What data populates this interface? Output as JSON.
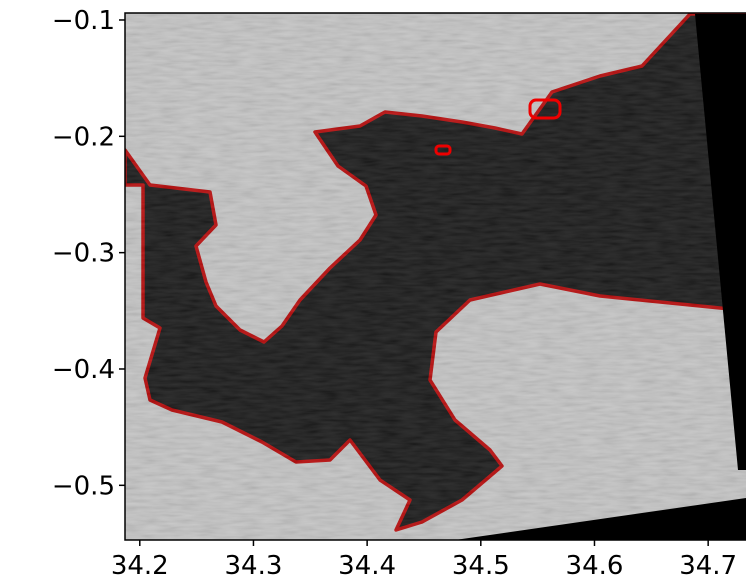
{
  "chart_data": {
    "type": "image",
    "xlim": [
      34.187,
      34.75
    ],
    "ylim": [
      -0.547,
      -0.094
    ],
    "xticks": [
      34.2,
      34.3,
      34.4,
      34.5,
      34.6,
      34.7
    ],
    "yticks": [
      {
        "value": -0.1,
        "label": "−0.1"
      },
      {
        "value": -0.2,
        "label": "−0.2"
      },
      {
        "value": -0.3,
        "label": "−0.3"
      },
      {
        "value": -0.4,
        "label": "−0.4"
      },
      {
        "value": -0.5,
        "label": "−0.5"
      }
    ]
  }
}
